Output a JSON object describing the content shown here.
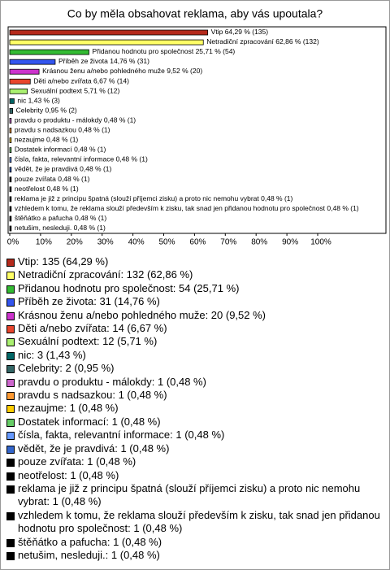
{
  "chart_data": {
    "type": "hbar",
    "title": "Co by měla obsahovat reklama, aby vás upoutala?",
    "categories": [
      "Vtip",
      "Netradiční zpracování",
      "Přidanou hodnotu pro společnost",
      "Příběh ze života",
      "Krásnou ženu a/nebo pohledného muže",
      "Děti a/nebo zvířata",
      "Sexuální podtext",
      "nic",
      "Celebrity",
      "pravdu o produktu - málokdy",
      "pravdu s nadsazkou",
      "nezaujme",
      "Dostatek informací",
      "čísla, fakta, relevantní informace",
      "vědět, že je pravdivá",
      "pouze zvířata",
      "neotřelost",
      "reklama je již z principu špatná (slouží příjemci zisku) a proto nic nemohu vybrat",
      "vzhledem k tomu, že reklama slouží především k zisku, tak snad jen přidanou hodnotu pro společnost",
      "štěňátko a pafucha",
      "netušim, nesleduji."
    ],
    "values": [
      64.29,
      62.86,
      25.71,
      14.76,
      9.52,
      6.67,
      5.71,
      1.43,
      0.95,
      0.48,
      0.48,
      0.48,
      0.48,
      0.48,
      0.48,
      0.48,
      0.48,
      0.48,
      0.48,
      0.48,
      0.48
    ],
    "value_labels": [
      "64,29 % (135)",
      "62,86 % (132)",
      "25,71 % (54)",
      "14,76 % (31)",
      "9,52 % (20)",
      "6,67 % (14)",
      "5,71 % (12)",
      "1,43 % (3)",
      "0,95 % (2)",
      "0,48 % (1)",
      "0,48 % (1)",
      "0,48 % (1)",
      "0,48 % (1)",
      "0,48 % (1)",
      "0,48 % (1)",
      "0,48 % (1)",
      "0,48 % (1)",
      "0,48 % (1)",
      "0,48 % (1)",
      "0,48 % (1)",
      "0,48 % (1)"
    ],
    "colors": [
      "#b52a1c",
      "#ffff66",
      "#33bb33",
      "#3355ee",
      "#cc33cc",
      "#e8452c",
      "#aaf070",
      "#006666",
      "#336666",
      "#cc66cc",
      "#ff9933",
      "#ffcc00",
      "#66cc66",
      "#6699ff",
      "#3366cc",
      "#000000",
      "#000000",
      "#000000",
      "#000000",
      "#000000",
      "#000000"
    ],
    "legend_labels": [
      "Vtip: 135 (64,29 %)",
      "Netradiční zpracování: 132 (62,86 %)",
      "Přidanou hodnotu pro společnost: 54 (25,71 %)",
      "Příběh ze života: 31 (14,76 %)",
      "Krásnou ženu a/nebo pohledného muže: 20 (9,52 %)",
      "Děti a/nebo zvířata: 14 (6,67 %)",
      "Sexuální podtext: 12 (5,71 %)",
      "nic: 3 (1,43 %)",
      "Celebrity: 2 (0,95 %)",
      "pravdu o produktu - málokdy: 1 (0,48 %)",
      "pravdu s nadsazkou: 1 (0,48 %)",
      "nezaujme: 1 (0,48 %)",
      "Dostatek informací: 1 (0,48 %)",
      "čísla, fakta, relevantní informace: 1 (0,48 %)",
      "vědět, že je pravdivá: 1 (0,48 %)",
      "pouze zvířata: 1 (0,48 %)",
      "neotřelost: 1 (0,48 %)",
      "reklama je již z principu špatná (slouží příjemci zisku) a proto nic nemohu vybrat: 1 (0,48 %)",
      "vzhledem k tomu, že reklama slouží především k zisku, tak snad jen přidanou hodnotu pro společnost: 1 (0,48 %)",
      "štěňátko a pafucha: 1 (0,48 %)",
      "netušim, nesleduji.: 1 (0,48 %)"
    ],
    "xlim": [
      0,
      122
    ],
    "xticks": [
      {
        "value": 0,
        "label": "0%"
      },
      {
        "value": 10,
        "label": "10%"
      },
      {
        "value": 20,
        "label": "20%"
      },
      {
        "value": 30,
        "label": "30%"
      },
      {
        "value": 40,
        "label": "40%"
      },
      {
        "value": 50,
        "label": "50%"
      },
      {
        "value": 60,
        "label": "60%"
      },
      {
        "value": 70,
        "label": "70%"
      },
      {
        "value": 80,
        "label": "80%"
      },
      {
        "value": 90,
        "label": "90%"
      },
      {
        "value": 100,
        "label": "100%"
      }
    ]
  }
}
